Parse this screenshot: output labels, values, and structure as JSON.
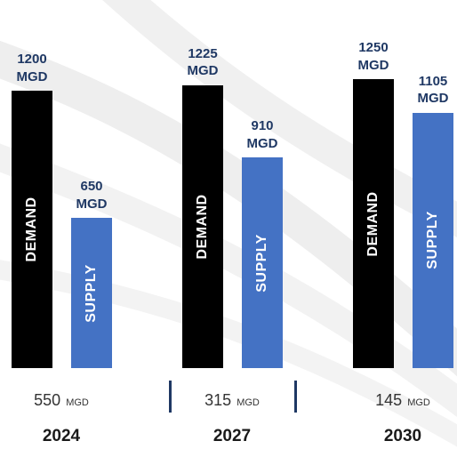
{
  "chart_data": {
    "type": "bar",
    "categories": [
      "2024",
      "2027",
      "2030"
    ],
    "series": [
      {
        "name": "DEMAND",
        "color": "#000000",
        "values": [
          1200,
          1225,
          1250
        ],
        "value_labels": [
          "1200 MGD",
          "1225 MGD",
          "1250 MGD"
        ]
      },
      {
        "name": "SUPPLY",
        "color": "#4472c4",
        "values": [
          650,
          910,
          1105
        ],
        "value_labels": [
          "650 MGD",
          "910 MGD",
          "1105 MGD"
        ]
      }
    ],
    "shortfall": {
      "values": [
        550,
        315,
        145
      ],
      "unit": "MGD"
    },
    "label_color": "#1f3864"
  }
}
